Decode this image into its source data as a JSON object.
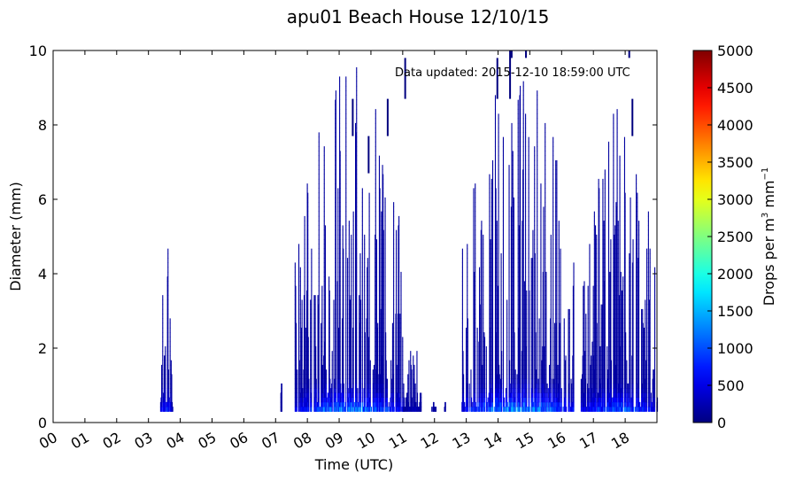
{
  "chart_data": {
    "type": "heatmap",
    "title": "apu01 Beach House 12/10/15",
    "xlabel": "Time (UTC)",
    "ylabel": "Diameter (mm)",
    "annotation": "Data updated:  2015-12-10 18:59:00 UTC",
    "x_ticks": [
      "00",
      "01",
      "02",
      "03",
      "04",
      "05",
      "06",
      "07",
      "08",
      "09",
      "10",
      "11",
      "12",
      "13",
      "14",
      "15",
      "16",
      "17",
      "18"
    ],
    "xlim": [
      0,
      19
    ],
    "ylim": [
      0,
      10
    ],
    "y_ticks": [
      "0",
      "2",
      "4",
      "6",
      "8",
      "10"
    ],
    "colorbar": {
      "label": "Drops per m³ mm⁻¹",
      "label_parts": [
        "Drops per m",
        "3",
        " mm",
        "−1"
      ],
      "range": [
        0,
        5000
      ],
      "ticks": [
        "0",
        "500",
        "1000",
        "1500",
        "2000",
        "2500",
        "3000",
        "3500",
        "4000",
        "4500",
        "5000"
      ],
      "colormap": "jet"
    },
    "activity": [
      {
        "start": 3.35,
        "end": 3.75,
        "max_diameter": 4.9,
        "peak_value": 1200
      },
      {
        "start": 7.15,
        "end": 7.2,
        "max_diameter": 1.9,
        "peak_value": 100
      },
      {
        "start": 7.6,
        "end": 11.05,
        "max_diameter": 9.8,
        "peak_value": 1900
      },
      {
        "start": 11.0,
        "end": 11.6,
        "max_diameter": 2.2,
        "peak_value": 400
      },
      {
        "start": 11.9,
        "end": 12.05,
        "max_diameter": 0.6,
        "peak_value": 200
      },
      {
        "start": 12.3,
        "end": 12.35,
        "max_diameter": 0.5,
        "peak_value": 100
      },
      {
        "start": 12.85,
        "end": 16.4,
        "max_diameter": 9.9,
        "peak_value": 2100
      },
      {
        "start": 16.6,
        "end": 19.0,
        "max_diameter": 8.7,
        "peak_value": 1600
      }
    ],
    "isolated_marks": [
      {
        "time": 9.4,
        "diameter_low": 7.7,
        "diameter_high": 8.7
      },
      {
        "time": 9.9,
        "diameter_low": 6.7,
        "diameter_high": 7.7
      },
      {
        "time": 10.5,
        "diameter_low": 7.7,
        "diameter_high": 8.7
      },
      {
        "time": 11.05,
        "diameter_low": 8.7,
        "diameter_high": 9.8
      },
      {
        "time": 13.95,
        "diameter_low": 8.7,
        "diameter_high": 9.8
      },
      {
        "time": 14.35,
        "diameter_low": 8.7,
        "diameter_high": 10
      },
      {
        "time": 14.4,
        "diameter_low": 9.8,
        "diameter_high": 10
      },
      {
        "time": 14.85,
        "diameter_low": 9.8,
        "diameter_high": 10
      },
      {
        "time": 18.2,
        "diameter_low": 7.7,
        "diameter_high": 8.7
      },
      {
        "time": 18.1,
        "diameter_low": 9.8,
        "diameter_high": 10
      }
    ]
  }
}
